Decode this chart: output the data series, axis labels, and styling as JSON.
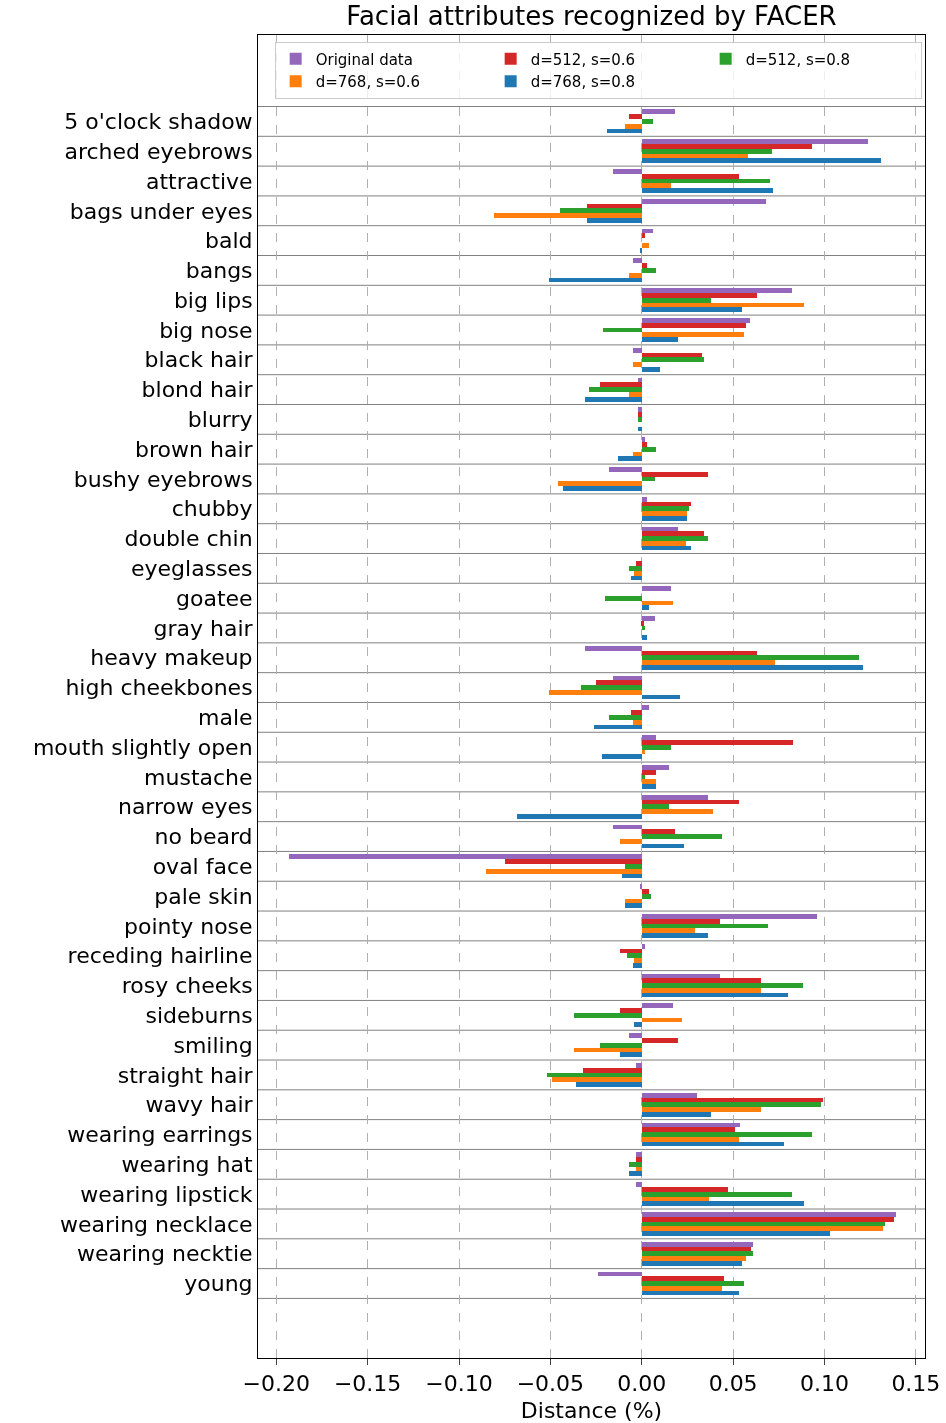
{
  "chart_data": {
    "type": "bar",
    "orientation": "horizontal",
    "title": "Facial attributes recognized by FACER",
    "xlabel": "Distance (%)",
    "categories": [
      "5 o'clock shadow",
      "arched eyebrows",
      "attractive",
      "bags under eyes",
      "bald",
      "bangs",
      "big lips",
      "big nose",
      "black hair",
      "blond hair",
      "blurry",
      "brown hair",
      "bushy eyebrows",
      "chubby",
      "double chin",
      "eyeglasses",
      "goatee",
      "gray hair",
      "heavy makeup",
      "high cheekbones",
      "male",
      "mouth slightly open",
      "mustache",
      "narrow eyes",
      "no beard",
      "oval face",
      "pale skin",
      "pointy nose",
      "receding hairline",
      "rosy cheeks",
      "sideburns",
      "smiling",
      "straight hair",
      "wavy hair",
      "wearing earrings",
      "wearing hat",
      "wearing lipstick",
      "wearing necklace",
      "wearing necktie",
      "young"
    ],
    "series": [
      {
        "name": "Original data",
        "color": "#9467bd",
        "values": [
          0.018,
          0.124,
          -0.016,
          0.068,
          0.006,
          -0.005,
          0.082,
          0.059,
          -0.005,
          -0.002,
          -0.002,
          0.002,
          -0.018,
          0.003,
          0.02,
          0,
          0.016,
          0.007,
          -0.031,
          -0.016,
          0.004,
          0.008,
          0.015,
          0.036,
          -0.016,
          -0.193,
          -0.001,
          0.096,
          0.002,
          0.043,
          0.017,
          -0.007,
          -0.003,
          0.03,
          0.054,
          -0.003,
          -0.003,
          0.139,
          0.061,
          -0.024
        ]
      },
      {
        "name": "d=512, s=0.6",
        "color": "#d62728",
        "values": [
          -0.007,
          0.093,
          0.053,
          -0.03,
          0.002,
          0.003,
          0.063,
          0.057,
          0.033,
          -0.023,
          -0.002,
          0.003,
          0.036,
          0.027,
          0.034,
          -0.003,
          0,
          0.001,
          0.063,
          -0.025,
          -0.006,
          0.083,
          0.008,
          0.053,
          0.018,
          -0.075,
          0.004,
          0.043,
          -0.012,
          0.065,
          -0.012,
          0.02,
          -0.032,
          0.099,
          0.051,
          -0.003,
          0.047,
          0.138,
          0.06,
          0.045
        ]
      },
      {
        "name": "d=512, s=0.8",
        "color": "#2ca02c",
        "values": [
          0.006,
          0.071,
          0.07,
          -0.045,
          0,
          0.008,
          0.038,
          -0.021,
          0.034,
          -0.029,
          -0.002,
          0.008,
          0.007,
          0.026,
          0.036,
          -0.007,
          -0.02,
          0.002,
          0.119,
          -0.033,
          -0.018,
          0.016,
          0.002,
          0.015,
          0.044,
          -0.009,
          0.005,
          0.069,
          -0.008,
          0.088,
          -0.037,
          -0.023,
          -0.052,
          0.098,
          0.093,
          -0.007,
          0.082,
          0.133,
          0.061,
          0.056
        ]
      },
      {
        "name": "d=768, s=0.6",
        "color": "#ff7f0e",
        "values": [
          -0.009,
          0.058,
          0.016,
          -0.081,
          0.004,
          -0.007,
          0.089,
          0.056,
          -0.005,
          -0.007,
          0,
          -0.005,
          -0.046,
          0.025,
          0.024,
          -0.004,
          0.017,
          0,
          0.073,
          -0.051,
          -0.005,
          0.002,
          0.008,
          0.039,
          -0.012,
          -0.085,
          -0.009,
          0.029,
          -0.004,
          0.065,
          0.022,
          -0.037,
          -0.049,
          0.065,
          0.053,
          -0.003,
          0.037,
          0.132,
          0.057,
          0.044
        ]
      },
      {
        "name": "d=768, s=0.8",
        "color": "#1f77b4",
        "values": [
          -0.019,
          0.131,
          0.072,
          -0.03,
          -0.001,
          -0.051,
          0.055,
          0.02,
          0.01,
          -0.031,
          -0.002,
          -0.013,
          -0.043,
          0.025,
          0.027,
          -0.006,
          0.004,
          0.003,
          0.121,
          0.021,
          -0.026,
          -0.022,
          0.008,
          -0.068,
          0.023,
          -0.011,
          -0.009,
          0.036,
          -0.005,
          0.08,
          -0.004,
          -0.012,
          -0.036,
          0.038,
          0.078,
          -0.007,
          0.089,
          0.103,
          0.055,
          0.053
        ]
      }
    ],
    "xlim": [
      -0.21,
      0.155
    ],
    "xticks": [
      {
        "value": -0.2,
        "label": "−0.20"
      },
      {
        "value": -0.15,
        "label": "−0.15"
      },
      {
        "value": -0.1,
        "label": "−0.10"
      },
      {
        "value": -0.05,
        "label": "−0.05"
      },
      {
        "value": 0,
        "label": "0.00"
      },
      {
        "value": 0.05,
        "label": "0.05"
      },
      {
        "value": 0.1,
        "label": "0.10"
      },
      {
        "value": 0.15,
        "label": "0.15"
      }
    ],
    "grid": true,
    "legend": "top right"
  }
}
